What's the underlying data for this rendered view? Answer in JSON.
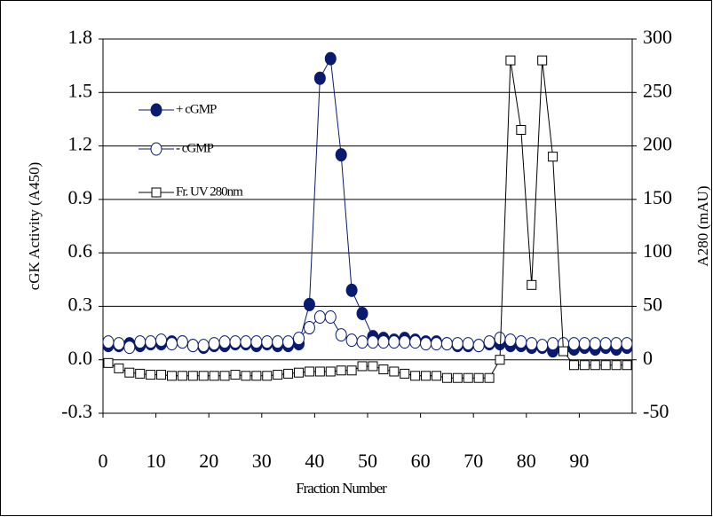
{
  "chart_data": {
    "type": "line",
    "ylabel": "cGK Activity (A450)",
    "y2label": "A280 (mAU)",
    "xlabel": "Fraction Number",
    "x": [
      1,
      3,
      5,
      7,
      9,
      11,
      13,
      15,
      17,
      19,
      21,
      23,
      25,
      27,
      29,
      31,
      33,
      35,
      37,
      39,
      41,
      43,
      45,
      47,
      49,
      51,
      53,
      55,
      57,
      59,
      61,
      63,
      65,
      67,
      69,
      71,
      73,
      75,
      77,
      79,
      81,
      83,
      85,
      87,
      89,
      91,
      93,
      95,
      97,
      99
    ],
    "series": [
      {
        "name": "+ cGMP",
        "color": "#0a1a6e",
        "marker": "filled-circle",
        "values": [
          0.08,
          0.08,
          0.09,
          0.08,
          0.09,
          0.09,
          0.1,
          0.1,
          0.08,
          0.07,
          0.08,
          0.08,
          0.09,
          0.09,
          0.08,
          0.09,
          0.08,
          0.08,
          0.09,
          0.31,
          1.58,
          1.69,
          1.15,
          0.39,
          0.26,
          0.13,
          0.12,
          0.11,
          0.12,
          0.11,
          0.1,
          0.1,
          0.09,
          0.08,
          0.08,
          0.08,
          0.09,
          0.09,
          0.08,
          0.08,
          0.07,
          0.07,
          0.05,
          0.06,
          0.06,
          0.07,
          0.06,
          0.07,
          0.06,
          0.07
        ]
      },
      {
        "name": "- cGMP",
        "color": "#0a1a6e",
        "marker": "open-circle",
        "values": [
          0.1,
          0.09,
          0.07,
          0.1,
          0.1,
          0.11,
          0.09,
          0.1,
          0.08,
          0.08,
          0.09,
          0.1,
          0.1,
          0.1,
          0.1,
          0.1,
          0.1,
          0.1,
          0.12,
          0.18,
          0.24,
          0.24,
          0.14,
          0.11,
          0.1,
          0.1,
          0.1,
          0.1,
          0.1,
          0.1,
          0.09,
          0.09,
          0.09,
          0.09,
          0.09,
          0.08,
          0.1,
          0.12,
          0.11,
          0.1,
          0.09,
          0.08,
          0.09,
          0.09,
          0.09,
          0.09,
          0.09,
          0.09,
          0.09,
          0.09
        ]
      },
      {
        "name": "Fr. UV  280nm",
        "color": "#000000",
        "marker": "open-square",
        "axis": "y2",
        "values": [
          -3,
          -8,
          -12,
          -13,
          -14,
          -14,
          -15,
          -15,
          -15,
          -15,
          -15,
          -15,
          -14,
          -15,
          -15,
          -15,
          -14,
          -13,
          -12,
          -11,
          -11,
          -11,
          -10,
          -10,
          -6,
          -6,
          -9,
          -11,
          -13,
          -15,
          -15,
          -15,
          -17,
          -17,
          -17,
          -17,
          -17,
          0,
          280,
          215,
          70,
          280,
          190,
          8,
          -5,
          -5,
          -5,
          -5,
          -5,
          -5
        ]
      }
    ],
    "xlim": [
      0,
      100
    ],
    "xticks": [
      0,
      10,
      20,
      30,
      40,
      50,
      60,
      70,
      80,
      90
    ],
    "ylim": [
      -0.3,
      1.8
    ],
    "yticks": [
      -0.3,
      {
        "value": 0,
        "label": "0.0"
      },
      0.3,
      0.6,
      0.9,
      1.2,
      1.5,
      1.8
    ],
    "y2lim": [
      -50,
      300
    ],
    "y2ticks": [
      -50,
      0,
      50,
      100,
      150,
      200,
      250,
      300
    ],
    "grid": true,
    "legend": "upper left"
  }
}
